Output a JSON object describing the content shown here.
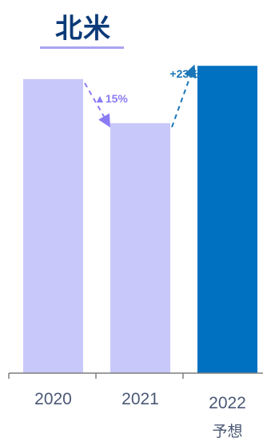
{
  "title": "北米",
  "colors": {
    "bar_light": "#c9c8fb",
    "bar_dark": "#0070c0",
    "axis": "#7f7f7f",
    "decline": "#8a7cf4",
    "growth": "#1a76b8",
    "title": "#0b3a78"
  },
  "chart_data": {
    "type": "bar",
    "categories": [
      "2020",
      "2021",
      "2022"
    ],
    "category_sublabels": [
      "",
      "",
      "予想"
    ],
    "values": [
      100,
      85,
      104.5
    ],
    "ylim": [
      0,
      110
    ],
    "grid": false,
    "annotations": [
      {
        "from": "2020",
        "to": "2021",
        "text": "▲15%",
        "direction": "down"
      },
      {
        "from": "2021",
        "to": "2022",
        "text": "+23%",
        "direction": "up"
      }
    ]
  }
}
